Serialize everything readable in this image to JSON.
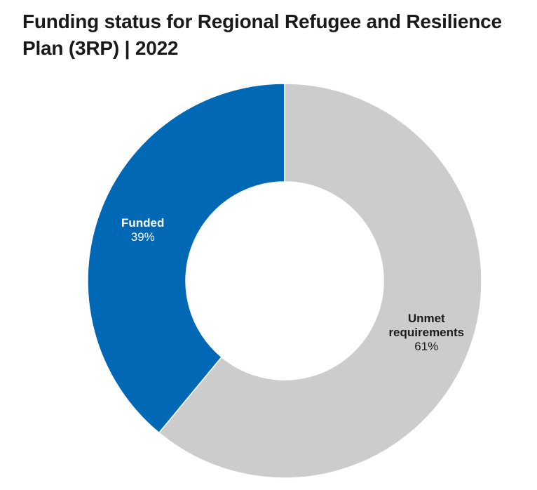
{
  "chart_data": {
    "type": "pie",
    "donut": true,
    "title": "Funding status for Regional Refugee and Resilience Plan (3RP) | 2022",
    "slices": [
      {
        "label_lines": [
          "Funded"
        ],
        "value": 39,
        "value_label": "39%",
        "color": "#0068B4",
        "text_color": "#FFFFFF"
      },
      {
        "label_lines": [
          "Unmet",
          "requirements"
        ],
        "value": 61,
        "value_label": "61%",
        "color": "#CCCCCC",
        "text_color": "#1A1A1A"
      }
    ],
    "legend": "none"
  }
}
